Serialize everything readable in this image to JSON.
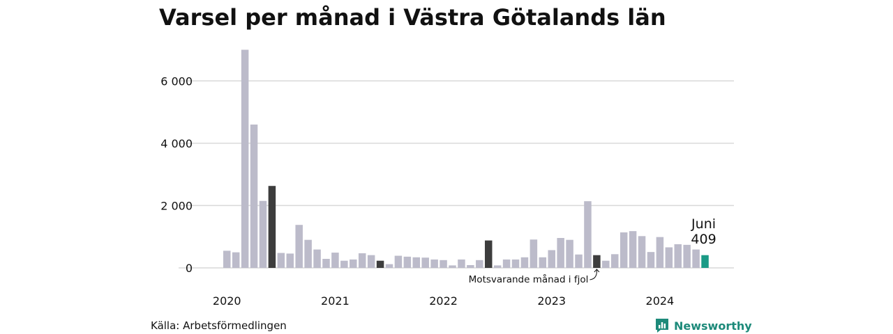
{
  "title": "Varsel per månad i Västra Götalands län",
  "source": "Källa: Arbetsförmedlingen",
  "brand": {
    "name": "Newsworthy",
    "icon": "newsworthy-logo-icon",
    "color": "#1d8a7a"
  },
  "colors": {
    "default": "#bcbbca",
    "june": "#3d3d3d",
    "latest": "#1a9a86",
    "grid": "#d9d9d9"
  },
  "annotations": {
    "latest_month": "Juni",
    "latest_value": "409",
    "last_year_label": "Motsvarande månad i fjol"
  },
  "chart_data": {
    "type": "bar",
    "ylim": [
      0,
      7000
    ],
    "yticks": [
      0,
      2000,
      4000,
      6000
    ],
    "ytick_labels": [
      "0",
      "2 000",
      "4 000",
      "6 000"
    ],
    "xtick_labels": [
      "2020",
      "2021",
      "2022",
      "2023",
      "2024"
    ],
    "grid": true,
    "start": "2020-01",
    "highlight_month": 6,
    "categories": [
      "2020-01",
      "2020-02",
      "2020-03",
      "2020-04",
      "2020-05",
      "2020-06",
      "2020-07",
      "2020-08",
      "2020-09",
      "2020-10",
      "2020-11",
      "2020-12",
      "2021-01",
      "2021-02",
      "2021-03",
      "2021-04",
      "2021-05",
      "2021-06",
      "2021-07",
      "2021-08",
      "2021-09",
      "2021-10",
      "2021-11",
      "2021-12",
      "2022-01",
      "2022-02",
      "2022-03",
      "2022-04",
      "2022-05",
      "2022-06",
      "2022-07",
      "2022-08",
      "2022-09",
      "2022-10",
      "2022-11",
      "2022-12",
      "2023-01",
      "2023-02",
      "2023-03",
      "2023-04",
      "2023-05",
      "2023-06",
      "2023-07",
      "2023-08",
      "2023-09",
      "2023-10",
      "2023-11",
      "2023-12",
      "2024-01",
      "2024-02",
      "2024-03",
      "2024-04",
      "2024-05",
      "2024-06"
    ],
    "values": [
      550,
      500,
      7000,
      4600,
      2150,
      2630,
      480,
      460,
      1380,
      900,
      590,
      290,
      490,
      230,
      270,
      470,
      410,
      230,
      120,
      390,
      360,
      340,
      330,
      270,
      250,
      80,
      270,
      90,
      250,
      880,
      80,
      270,
      270,
      340,
      910,
      340,
      570,
      960,
      900,
      430,
      2140,
      409,
      230,
      440,
      1140,
      1180,
      1020,
      510,
      990,
      660,
      760,
      740,
      590,
      409
    ]
  }
}
